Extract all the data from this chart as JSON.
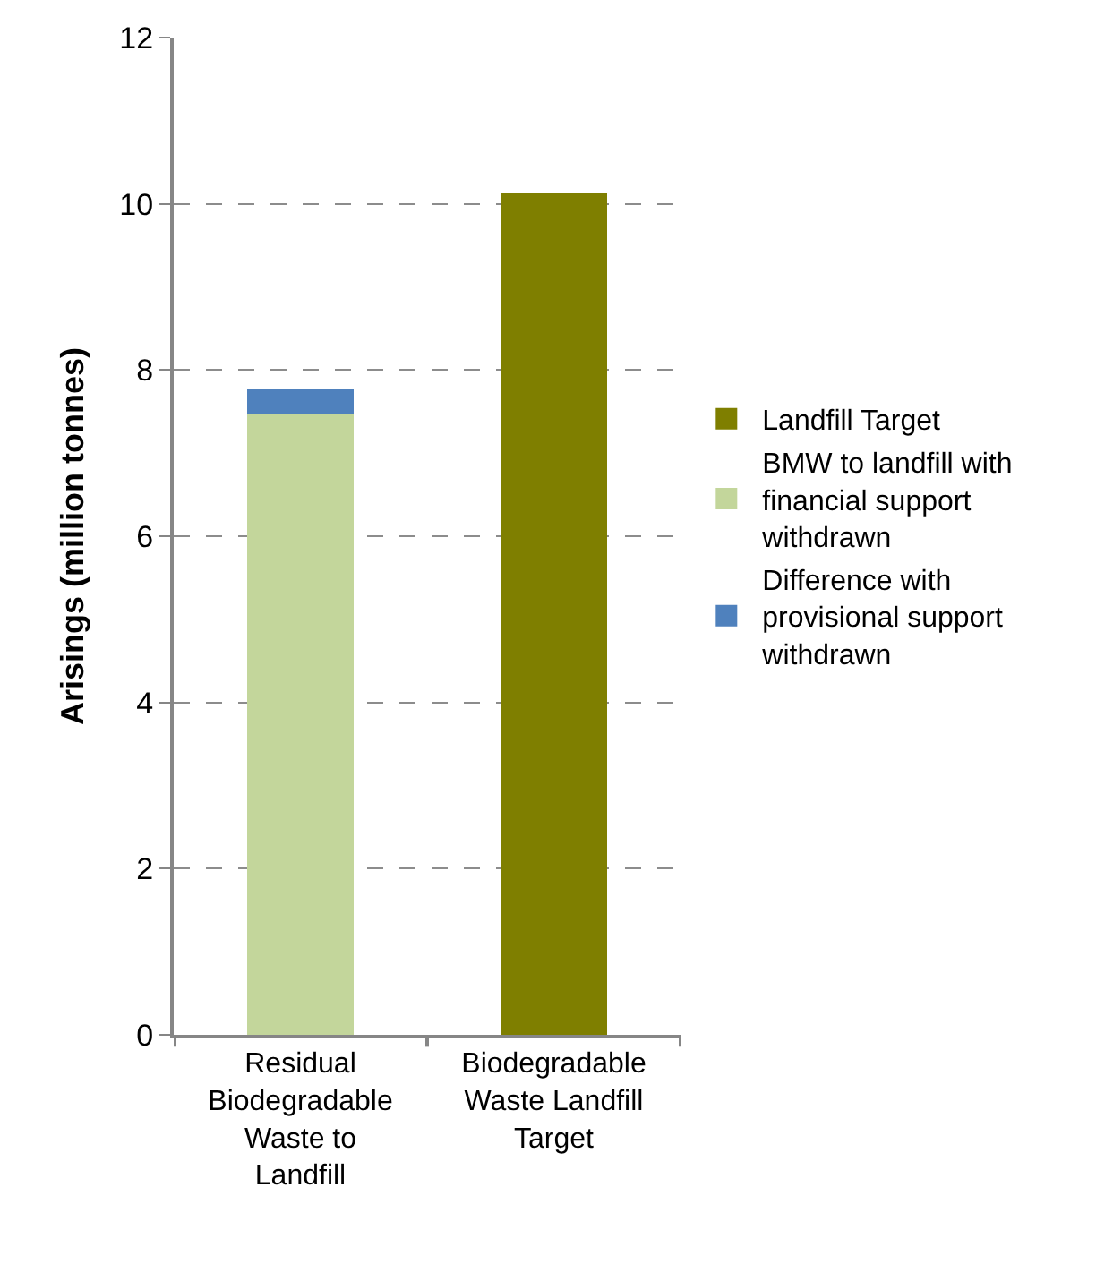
{
  "chart_data": {
    "type": "bar",
    "stacked": true,
    "ylabel": "Arisings (million tonnes)",
    "categories": [
      "Residual Biodegradable Waste to Landfill",
      "Biodegradable Waste Landfill Target"
    ],
    "series": [
      {
        "name": "BMW to landfill with financial support withdrawn",
        "color": "#c3d69b",
        "values": [
          7.47,
          null
        ]
      },
      {
        "name": "Difference with provisional support withdrawn",
        "color": "#4f81bd",
        "values": [
          0.3,
          null
        ]
      },
      {
        "name": "Landfill Target",
        "color": "#7f7f00",
        "values": [
          null,
          10.13
        ]
      }
    ],
    "ylim": [
      0,
      12
    ],
    "yticks": [
      0,
      2,
      4,
      6,
      8,
      10,
      12
    ],
    "grid": "y",
    "legend": "right"
  }
}
